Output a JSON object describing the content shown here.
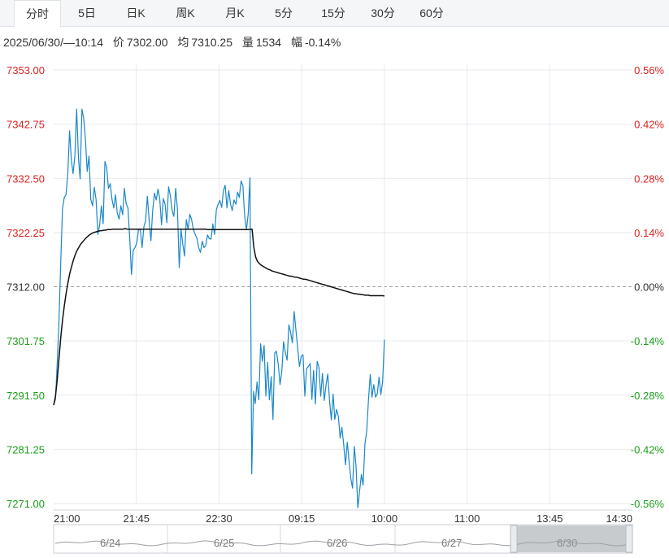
{
  "tabs": [
    {
      "label": "分时",
      "active": true
    },
    {
      "label": "5日",
      "active": false
    },
    {
      "label": "日K",
      "active": false
    },
    {
      "label": "周K",
      "active": false
    },
    {
      "label": "月K",
      "active": false
    },
    {
      "label": "5分",
      "active": false
    },
    {
      "label": "15分",
      "active": false
    },
    {
      "label": "30分",
      "active": false
    },
    {
      "label": "60分",
      "active": false
    }
  ],
  "info": {
    "datetime": "2025/06/30/—10:14",
    "price_label": "价",
    "price": "7302.00",
    "avg_label": "均",
    "avg": "7310.25",
    "vol_label": "量",
    "vol": "1534",
    "chg_label": "幅",
    "chg": "-0.14%"
  },
  "colors": {
    "up": "#e02020",
    "down": "#1aa01a",
    "price_line": "#1a87c9",
    "avg_line": "#111111",
    "grid": "#e6e9ee"
  },
  "chart_data": {
    "type": "line",
    "ylim": [
      7271.0,
      7353.0
    ],
    "base_price": 7312.0,
    "y_ticks": [
      "7353.00",
      "7342.75",
      "7332.50",
      "7322.25",
      "7312.00",
      "7301.75",
      "7291.50",
      "7281.25",
      "7271.00"
    ],
    "pct_ticks": [
      "0.56%",
      "0.42%",
      "0.28%",
      "0.14%",
      "0.00%",
      "-0.14%",
      "-0.28%",
      "-0.42%",
      "-0.56%"
    ],
    "x_ticks": [
      "21:00",
      "21:45",
      "22:30",
      "09:15",
      "10:00",
      "11:00",
      "13:45",
      "14:30"
    ],
    "series": [
      {
        "role": "price",
        "values": [
          7289.6,
          7290.7,
          7297.5,
          7305.3,
          7316.5,
          7326.8,
          7328.9,
          7329.4,
          7333.4,
          7341.5,
          7335.9,
          7333.4,
          7336.7,
          7345.6,
          7336.4,
          7332.4,
          7345.6,
          7343.8,
          7339.6,
          7333.8,
          7336.7,
          7328.5,
          7327.3,
          7330.8,
          7328.5,
          7321.9,
          7323.7,
          7327.3,
          7323.9,
          7335.7,
          7334.5,
          7330.6,
          7331.5,
          7328.5,
          7326.9,
          7329.4,
          7325.9,
          7324.8,
          7327.3,
          7325.6,
          7330.6,
          7327.7,
          7326.9,
          7321.2,
          7314.3,
          7318.9,
          7319.4,
          7320.3,
          7322.8,
          7322.8,
          7319.4,
          7323.3,
          7324.5,
          7329.1,
          7324.5,
          7320.7,
          7326.4,
          7329.7,
          7328.4,
          7330.5,
          7328.7,
          7323.7,
          7328.7,
          7327.6,
          7324.1,
          7330.9,
          7329.2,
          7326.4,
          7325.3,
          7330.6,
          7326.6,
          7315.6,
          7322.8,
          7320.1,
          7317.8,
          7324.7,
          7322.8,
          7325.7,
          7324.7,
          7322.8,
          7321.9,
          7321.2,
          7319.4,
          7318.5,
          7320.6,
          7319.4,
          7319.8,
          7321.8,
          7321.1,
          7321.0,
          7323.9,
          7321.9,
          7326.6,
          7327.6,
          7328.3,
          7327.0,
          7330.2,
          7331.2,
          7326.9,
          7330.2,
          7327.6,
          7326.4,
          7328.4,
          7327.6,
          7329.9,
          7328.9,
          7332.0,
          7331.1,
          7325.3,
          7322.8,
          7325.7,
          7332.6,
          7276.6,
          7292.2,
          7289.9,
          7294.0,
          7290.6,
          7301.2,
          7297.9,
          7300.9,
          7291.3,
          7297.7,
          7290.6,
          7295.0,
          7286.9,
          7299.5,
          7299.8,
          7297.3,
          7293.5,
          7296.0,
          7301.6,
          7299.6,
          7298.1,
          7304.8,
          7303.4,
          7301.4,
          7307.3,
          7303.7,
          7300.4,
          7296.9,
          7298.9,
          7299.1,
          7291.3,
          7296.5,
          7296.9,
          7297.5,
          7290.7,
          7296.2,
          7289.8,
          7297.9,
          7296.7,
          7291.3,
          7295.6,
          7290.5,
          7293.4,
          7295.5,
          7290.5,
          7286.8,
          7291.7,
          7286.9,
          7288.8,
          7287.4,
          7283.4,
          7285.4,
          7282.2,
          7278.3,
          7282.6,
          7279.2,
          7275.8,
          7273.9,
          7281.8,
          7278.0,
          7270.2,
          7273.4,
          7276.5,
          7274.5,
          7282.2,
          7284.7,
          7290.6,
          7295.4,
          7291.1,
          7293.5,
          7291.1,
          7291.8,
          7294.9,
          7291.6,
          7294.0,
          7302.0
        ]
      },
      {
        "role": "avg",
        "values": [
          7289.6,
          7291.2,
          7294.4,
          7298.5,
          7302.5,
          7305.8,
          7308.5,
          7310.8,
          7312.8,
          7314.5,
          7315.8,
          7317.0,
          7318.0,
          7318.8,
          7319.4,
          7320.0,
          7320.4,
          7320.8,
          7321.2,
          7321.5,
          7321.8,
          7322.0,
          7322.2,
          7322.3,
          7322.4,
          7322.5,
          7322.6,
          7322.6,
          7322.7,
          7322.7,
          7322.8,
          7322.8,
          7322.8,
          7322.9,
          7322.9,
          7322.9,
          7322.9,
          7322.9,
          7322.9,
          7322.9,
          7323.0,
          7322.9,
          7322.9,
          7322.9,
          7322.9,
          7322.9,
          7322.9,
          7322.9,
          7322.9,
          7322.9,
          7322.9,
          7322.9,
          7322.9,
          7322.9,
          7322.9,
          7322.9,
          7322.9,
          7322.9,
          7322.9,
          7322.9,
          7322.9,
          7322.9,
          7322.9,
          7322.9,
          7322.9,
          7322.9,
          7322.9,
          7322.9,
          7322.9,
          7322.9,
          7322.9,
          7322.9,
          7322.9,
          7322.9,
          7322.9,
          7322.9,
          7322.9,
          7322.9,
          7322.9,
          7322.9,
          7322.9,
          7322.9,
          7322.9,
          7322.9,
          7322.9,
          7322.9,
          7322.8,
          7322.8,
          7322.8,
          7322.8,
          7322.8,
          7322.8,
          7322.8,
          7322.8,
          7322.8,
          7322.8,
          7322.8,
          7322.8,
          7322.8,
          7322.8,
          7322.8,
          7322.8,
          7322.8,
          7322.8,
          7322.8,
          7322.8,
          7322.8,
          7322.8,
          7322.8,
          7322.8,
          7322.9,
          7322.9,
          7319.4,
          7317.6,
          7316.8,
          7316.4,
          7316.1,
          7315.9,
          7315.7,
          7315.5,
          7315.3,
          7315.2,
          7315.0,
          7314.9,
          7314.8,
          7314.7,
          7314.6,
          7314.5,
          7314.4,
          7314.3,
          7314.2,
          7314.1,
          7314.0,
          7314.0,
          7313.9,
          7313.8,
          7313.8,
          7313.7,
          7313.6,
          7313.5,
          7313.4,
          7313.4,
          7313.3,
          7313.2,
          7313.1,
          7313.0,
          7312.9,
          7312.8,
          7312.7,
          7312.6,
          7312.5,
          7312.4,
          7312.3,
          7312.2,
          7312.1,
          7312.0,
          7311.9,
          7311.8,
          7311.7,
          7311.6,
          7311.5,
          7311.4,
          7311.3,
          7311.2,
          7311.1,
          7311.0,
          7310.9,
          7310.8,
          7310.7,
          7310.7,
          7310.6,
          7310.6,
          7310.5,
          7310.5,
          7310.4,
          7310.4,
          7310.4,
          7310.3,
          7310.3,
          7310.3,
          7310.3,
          7310.3,
          7310.3,
          7310.3,
          7310.3,
          7310.25
        ]
      }
    ]
  },
  "navigator": {
    "dates": [
      "6/24",
      "6/25",
      "6/26",
      "6/27",
      "6/30"
    ]
  }
}
